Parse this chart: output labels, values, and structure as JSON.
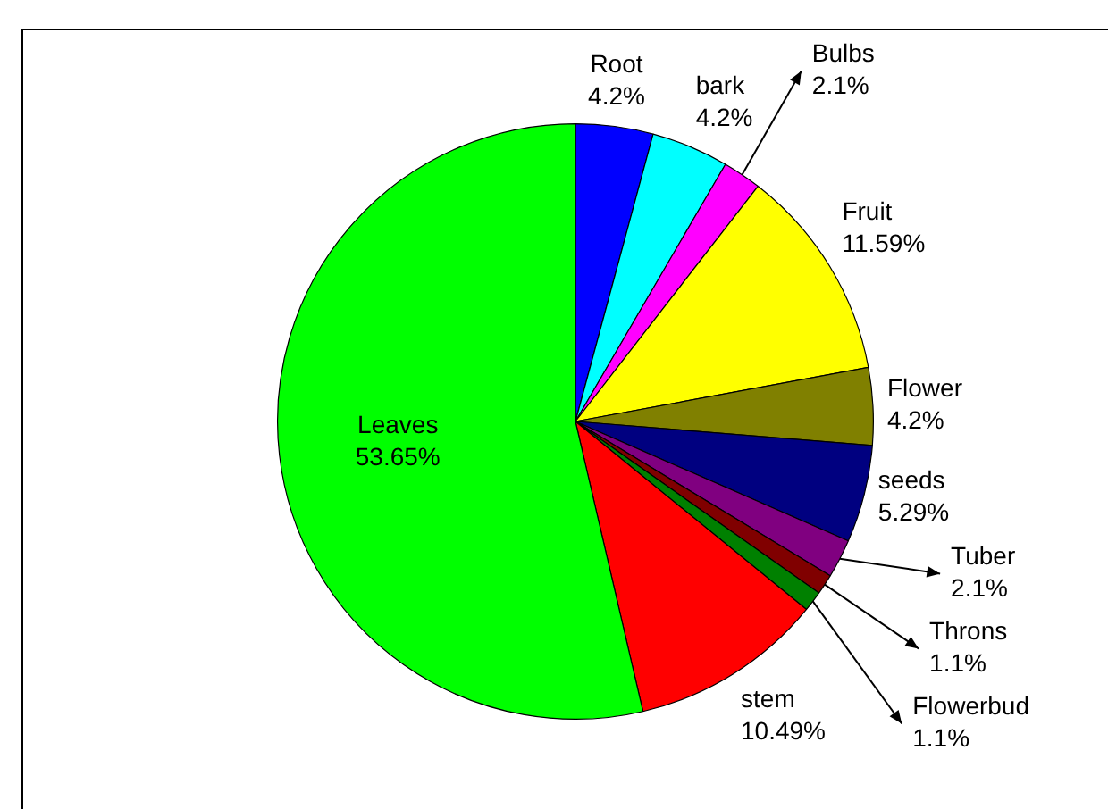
{
  "chart_data": {
    "type": "pie",
    "categories": [
      "Root",
      "bark",
      "Bulbs",
      "Fruit",
      "Flower",
      "seeds",
      "Tuber",
      "Throns",
      "Flowerbud",
      "stem",
      "Leaves"
    ],
    "values": [
      4.2,
      4.2,
      2.1,
      11.59,
      4.2,
      5.29,
      2.1,
      1.1,
      1.1,
      10.49,
      53.65
    ],
    "value_labels": [
      "4.2%",
      "4.2%",
      "2.1%",
      "11.59%",
      "4.2%",
      "5.29%",
      "2.1%",
      "1.1%",
      "1.1%",
      "10.49%",
      "53.65%"
    ],
    "colors": [
      "#0000ff",
      "#00ffff",
      "#ff00ff",
      "#ffff00",
      "#808000",
      "#000080",
      "#800080",
      "#800000",
      "#008000",
      "#ff0000",
      "#00ff00"
    ],
    "legend": false
  }
}
